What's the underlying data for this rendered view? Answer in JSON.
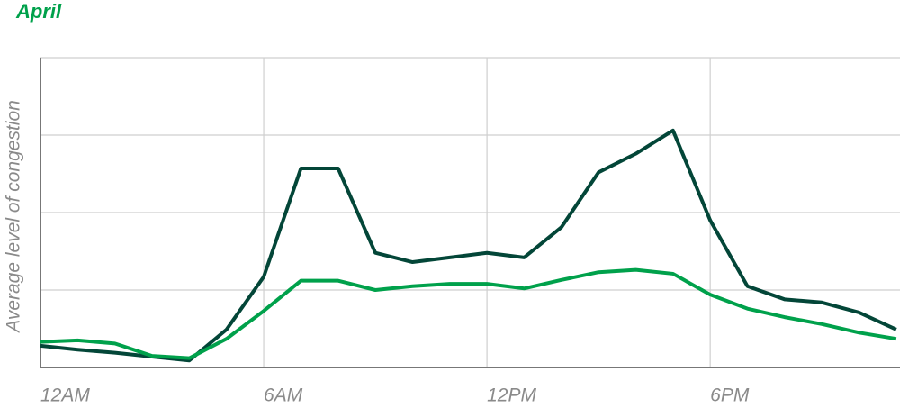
{
  "chart_data": {
    "type": "line",
    "title": "April",
    "y_label": "Average level of congestion",
    "x": [
      0,
      1,
      2,
      3,
      4,
      5,
      6,
      7,
      8,
      9,
      10,
      11,
      12,
      13,
      14,
      15,
      16,
      17,
      18,
      19,
      20,
      21,
      22,
      23
    ],
    "xlim": [
      0,
      23.1
    ],
    "xticks": [
      {
        "value": 0,
        "label": "12AM"
      },
      {
        "value": 6,
        "label": "6AM"
      },
      {
        "value": 12,
        "label": "12PM"
      },
      {
        "value": 18,
        "label": "6PM"
      }
    ],
    "ylim": [
      0,
      4
    ],
    "yticks": [
      0,
      1,
      2,
      3,
      4
    ],
    "show_ytick_labels": false,
    "grid": true,
    "series": [
      {
        "color": "#034638",
        "values": [
          0.28,
          0.23,
          0.19,
          0.14,
          0.09,
          0.49,
          1.17,
          2.57,
          2.57,
          1.48,
          1.36,
          1.42,
          1.48,
          1.42,
          1.81,
          2.52,
          2.76,
          3.06,
          1.9,
          1.05,
          0.88,
          0.84,
          0.71,
          0.49
        ]
      },
      {
        "color": "#00a14b",
        "values": [
          0.33,
          0.35,
          0.31,
          0.15,
          0.12,
          0.37,
          0.73,
          1.12,
          1.12,
          1.0,
          1.05,
          1.08,
          1.08,
          1.02,
          1.13,
          1.23,
          1.26,
          1.21,
          0.94,
          0.76,
          0.65,
          0.56,
          0.45,
          0.37
        ]
      }
    ]
  }
}
